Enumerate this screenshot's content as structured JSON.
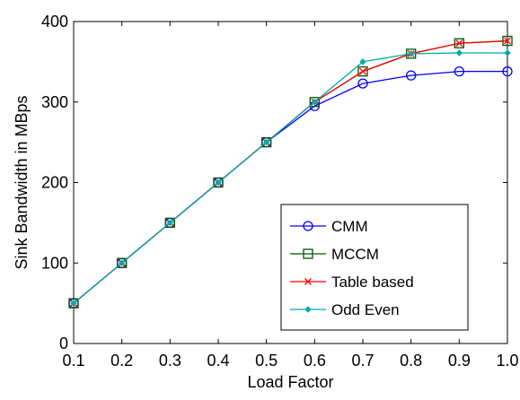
{
  "chart_data": {
    "type": "line",
    "title": "",
    "xlabel": "Load Factor",
    "ylabel": "Sink Bandwidth in MBps",
    "xlim": [
      0.1,
      1.0
    ],
    "ylim": [
      0,
      400
    ],
    "x_ticks": [
      "0.1",
      "0.2",
      "0.3",
      "0.4",
      "0.5",
      "0.6",
      "0.7",
      "0.8",
      "0.9",
      "1.0"
    ],
    "y_ticks": [
      "0",
      "100",
      "200",
      "300",
      "400"
    ],
    "grid": false,
    "legend_position": "lower-right",
    "x": [
      0.1,
      0.2,
      0.3,
      0.4,
      0.5,
      0.6,
      0.7,
      0.8,
      0.9,
      1.0
    ],
    "series": [
      {
        "name": "CMM",
        "color": "#0000ff",
        "marker": "circle",
        "values": [
          50,
          100,
          150,
          200,
          250,
          295,
          323,
          333,
          338,
          338
        ]
      },
      {
        "name": "MCCM",
        "color": "#005500",
        "marker": "square",
        "values": [
          50,
          100,
          150,
          200,
          250,
          300,
          338,
          360,
          373,
          376
        ]
      },
      {
        "name": "Table based",
        "color": "#ff0000",
        "marker": "x",
        "values": [
          50,
          100,
          150,
          200,
          250,
          300,
          338,
          360,
          373,
          376
        ]
      },
      {
        "name": "Odd Even",
        "color": "#00aaaa",
        "marker": "diamond",
        "values": [
          50,
          100,
          150,
          200,
          250,
          300,
          350,
          360,
          361,
          361
        ]
      }
    ]
  }
}
